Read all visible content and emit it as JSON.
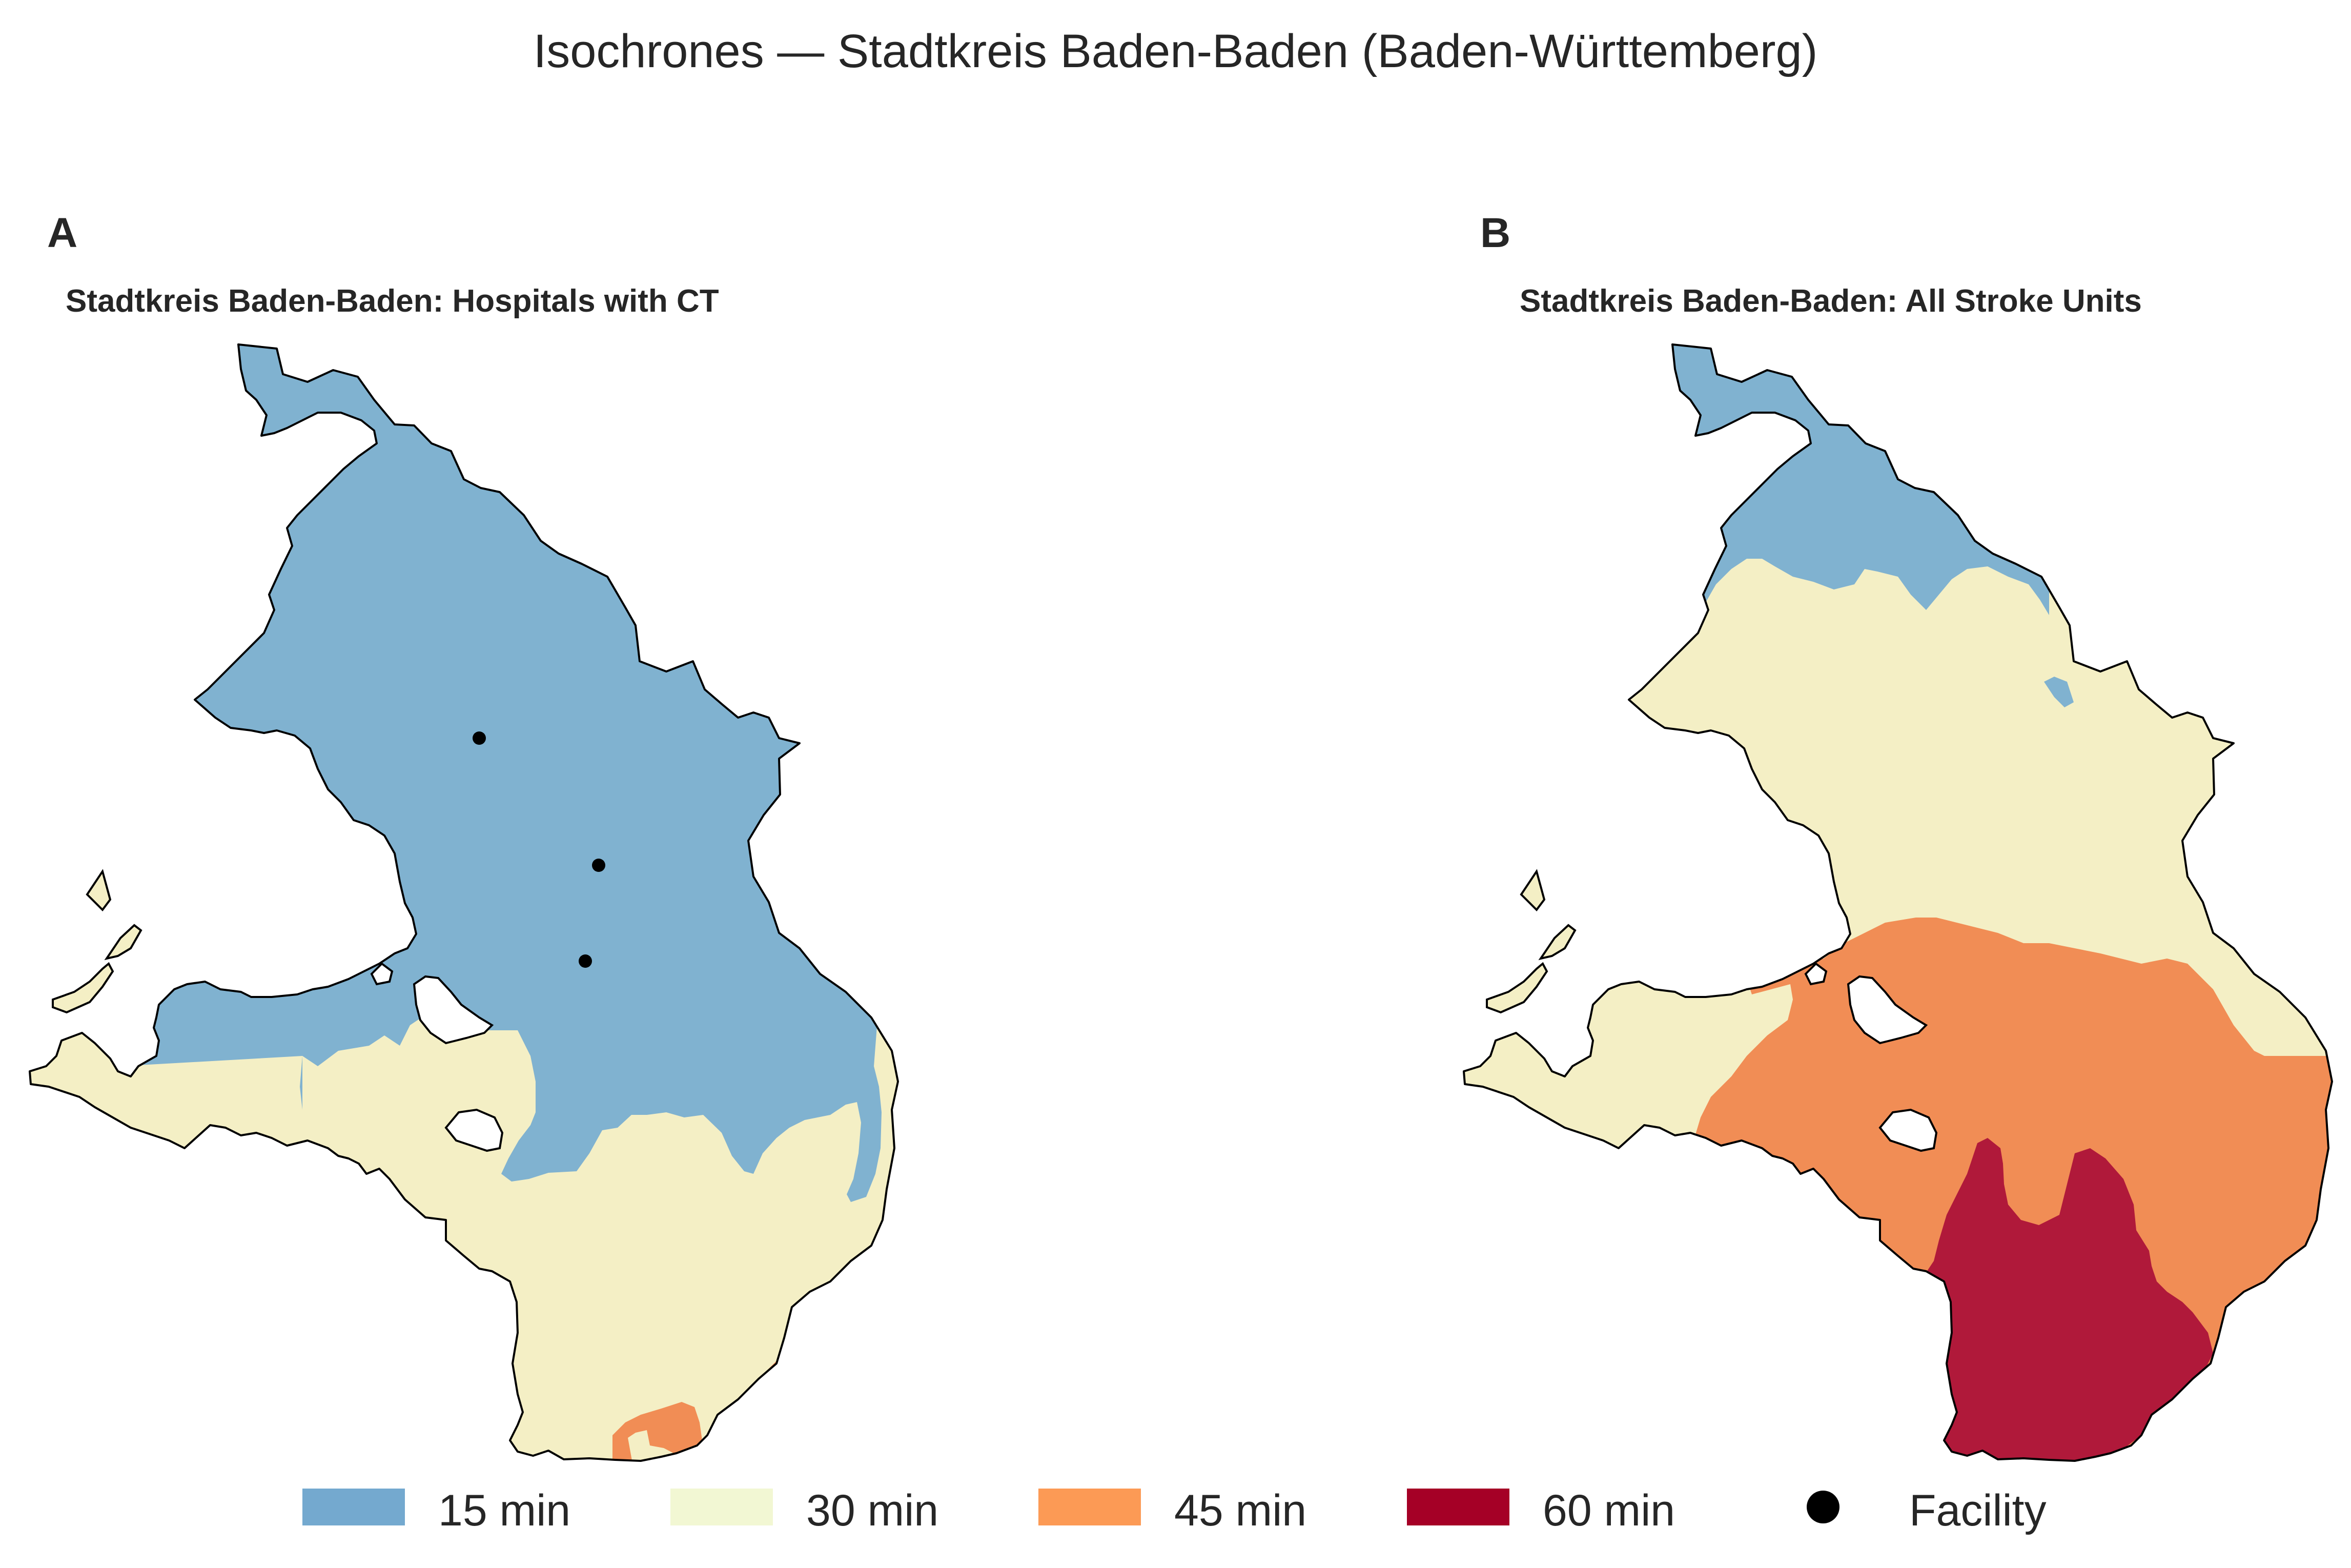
{
  "title": "Isochrones — Stadtkreis Baden-Baden (Baden-Württemberg)",
  "panels": [
    {
      "letter": "A",
      "title": "Stadtkreis Baden-Baden: Hospitals with CT"
    },
    {
      "letter": "B",
      "title": "Stadtkreis Baden-Baden: All Stroke Units"
    }
  ],
  "legend": [
    {
      "label": "15 min",
      "color": "#74a9cf"
    },
    {
      "label": "30 min",
      "color": "#f2f7d3"
    },
    {
      "label": "45 min",
      "color": "#fc9a55"
    },
    {
      "label": "60 min",
      "color": "#a50026"
    },
    {
      "label": "Facility",
      "color": "#000000"
    }
  ],
  "colors": {
    "c15": "#80b2d0",
    "c30": "#f4efc5",
    "c45": "#f18d55",
    "c60": "#b0193a",
    "outline": "#000000"
  }
}
